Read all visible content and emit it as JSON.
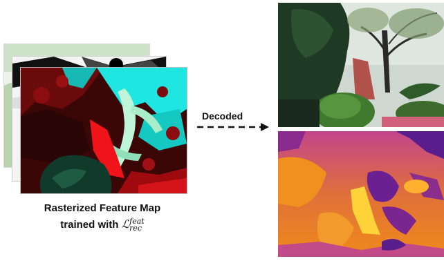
{
  "left_panel": {
    "caption_line1": "Rasterized Feature Map",
    "caption_line2_text": "trained with ",
    "caption_math_base": "ℒ",
    "caption_math_sup": "feat",
    "caption_math_sub": "rec"
  },
  "arrow": {
    "label": "Decoded"
  },
  "colors": {
    "feature_cyan": "#1fe6e0",
    "feature_red": "#e0141a",
    "feature_darkred": "#5a0a0a",
    "depth_orange": "#f08a1a",
    "depth_purple": "#5a1d8c",
    "depth_yellow": "#ffd23a"
  }
}
